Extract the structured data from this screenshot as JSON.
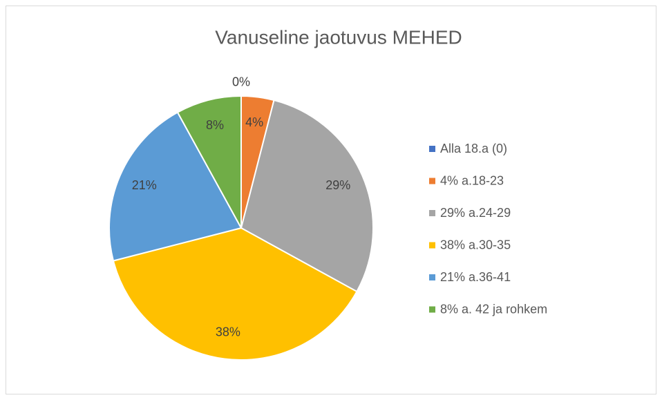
{
  "chart_data": {
    "type": "pie",
    "title": "Vanuseline jaotuvus MEHED",
    "categories": [
      "Alla 18.a (0)",
      "4% a.18-23",
      "29% a.24-29",
      "38% a.30-35",
      "21% a.36-41",
      "8% a. 42 ja rohkem"
    ],
    "values": [
      0,
      4,
      29,
      38,
      21,
      8
    ],
    "value_labels": [
      "0%",
      "4%",
      "29%",
      "38%",
      "21%",
      "8%"
    ],
    "colors": [
      "#4472c4",
      "#ed7d31",
      "#a5a5a5",
      "#ffc000",
      "#5b9bd5",
      "#70ad47"
    ],
    "legend": "right"
  }
}
